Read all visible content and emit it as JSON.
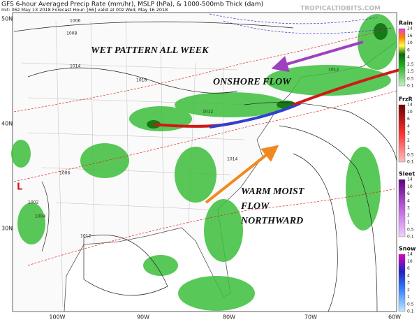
{
  "header": {
    "title": "GFS 6-hour Averaged Precip Rate (mm/hr), MSLP (hPa), & 1000-500mb Thick (dam)",
    "subtitle": "Init: 06z May 13 2018   Forecast Hour: [66]   valid at 00z Wed, May 16 2018",
    "credit": "TROPICALTIDBITS.COM"
  },
  "annotations": {
    "wet_pattern": "WET PATTERN ALL WEEK",
    "onshore": "ONSHORE FLOW",
    "warm_moist": [
      "WARM MOIST",
      "FLOW",
      "NORTHWARD"
    ]
  },
  "low_marker": "L",
  "latitude_labels": [
    "50N",
    "40N",
    "30N"
  ],
  "longitude_labels": [
    "100W",
    "90W",
    "80W",
    "70W",
    "60W"
  ],
  "isobar_labels": [
    "1006",
    "1008",
    "1014",
    "1016",
    "1012",
    "1014",
    "1006",
    "1002",
    "1004",
    "1012",
    "1012"
  ],
  "legend": [
    {
      "title": "Rain",
      "ticks": [
        24,
        16,
        10,
        6,
        4,
        2.5,
        1.5,
        0.5,
        0.1
      ]
    },
    {
      "title": "FrzR",
      "ticks": [
        14,
        10,
        6,
        4,
        3,
        2,
        1,
        0.5,
        0.1
      ]
    },
    {
      "title": "Sleet",
      "ticks": [
        14,
        10,
        6,
        4,
        3,
        2,
        1,
        0.5,
        0.1
      ]
    },
    {
      "title": "Snow",
      "ticks": [
        14,
        10,
        6,
        4,
        3,
        2,
        1,
        0.5,
        0.1
      ]
    }
  ]
}
